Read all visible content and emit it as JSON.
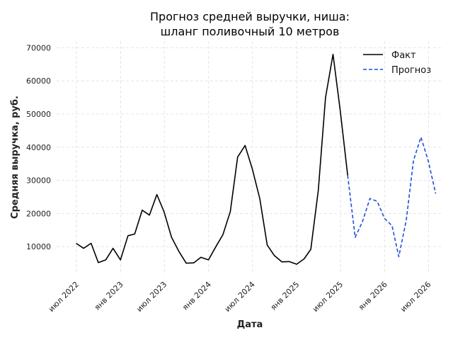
{
  "chart_data": {
    "type": "line",
    "title_lines": [
      "Прогноз средней выручки, ниша:",
      "шланг поливочный 10 метров"
    ],
    "xlabel": "Дата",
    "ylabel": "Средняя выручка, руб.",
    "ylim": [
      1500,
      72000
    ],
    "yticks": [
      10000,
      20000,
      30000,
      40000,
      50000,
      60000,
      70000
    ],
    "xlim": [
      "2022-04-10",
      "2026-08-25"
    ],
    "xticks": [
      {
        "date": "2022-07-01",
        "label": "июл 2022"
      },
      {
        "date": "2023-01-01",
        "label": "янв 2023"
      },
      {
        "date": "2023-07-01",
        "label": "июл 2023"
      },
      {
        "date": "2024-01-01",
        "label": "янв 2024"
      },
      {
        "date": "2024-07-01",
        "label": "июл 2024"
      },
      {
        "date": "2025-01-01",
        "label": "янв 2025"
      },
      {
        "date": "2025-07-01",
        "label": "июл 2025"
      },
      {
        "date": "2026-01-01",
        "label": "янв 2026"
      },
      {
        "date": "2026-07-01",
        "label": "июл 2026"
      }
    ],
    "grid": true,
    "legend_position": "top-right",
    "series": [
      {
        "name": "Факт",
        "color": "#000000",
        "style": "solid",
        "x": [
          "2022-06-30",
          "2022-07-31",
          "2022-08-31",
          "2022-09-30",
          "2022-10-31",
          "2022-11-30",
          "2022-12-31",
          "2023-01-31",
          "2023-02-28",
          "2023-03-31",
          "2023-04-30",
          "2023-05-31",
          "2023-06-30",
          "2023-07-31",
          "2023-08-31",
          "2023-09-30",
          "2023-10-31",
          "2023-11-30",
          "2023-12-31",
          "2024-01-31",
          "2024-02-29",
          "2024-03-31",
          "2024-04-30",
          "2024-05-31",
          "2024-06-30",
          "2024-07-31",
          "2024-08-31",
          "2024-09-30",
          "2024-10-31",
          "2024-11-30",
          "2024-12-31",
          "2025-01-31",
          "2025-02-28",
          "2025-03-31",
          "2025-04-30",
          "2025-05-31",
          "2025-06-30",
          "2025-07-31"
        ],
        "y": [
          11000,
          9500,
          11000,
          5200,
          6000,
          9500,
          6000,
          13300,
          13800,
          21000,
          19500,
          25700,
          20500,
          12800,
          8500,
          5000,
          5100,
          6800,
          6000,
          10000,
          13600,
          20600,
          37000,
          40500,
          33500,
          24500,
          10500,
          7300,
          5400,
          5500,
          4700,
          6300,
          9200,
          27000,
          55000,
          68000,
          51000,
          31500
        ]
      },
      {
        "name": "Прогноз",
        "color": "#1f4fd6",
        "style": "dashed",
        "x": [
          "2025-07-31",
          "2025-08-31",
          "2025-09-30",
          "2025-10-31",
          "2025-11-30",
          "2025-12-31",
          "2026-01-31",
          "2026-02-28",
          "2026-03-31",
          "2026-04-30",
          "2026-05-31",
          "2026-06-30",
          "2026-07-31"
        ],
        "y": [
          31500,
          12800,
          17500,
          24500,
          23700,
          18500,
          16300,
          7000,
          18000,
          36000,
          43000,
          36000,
          26000
        ]
      }
    ]
  }
}
